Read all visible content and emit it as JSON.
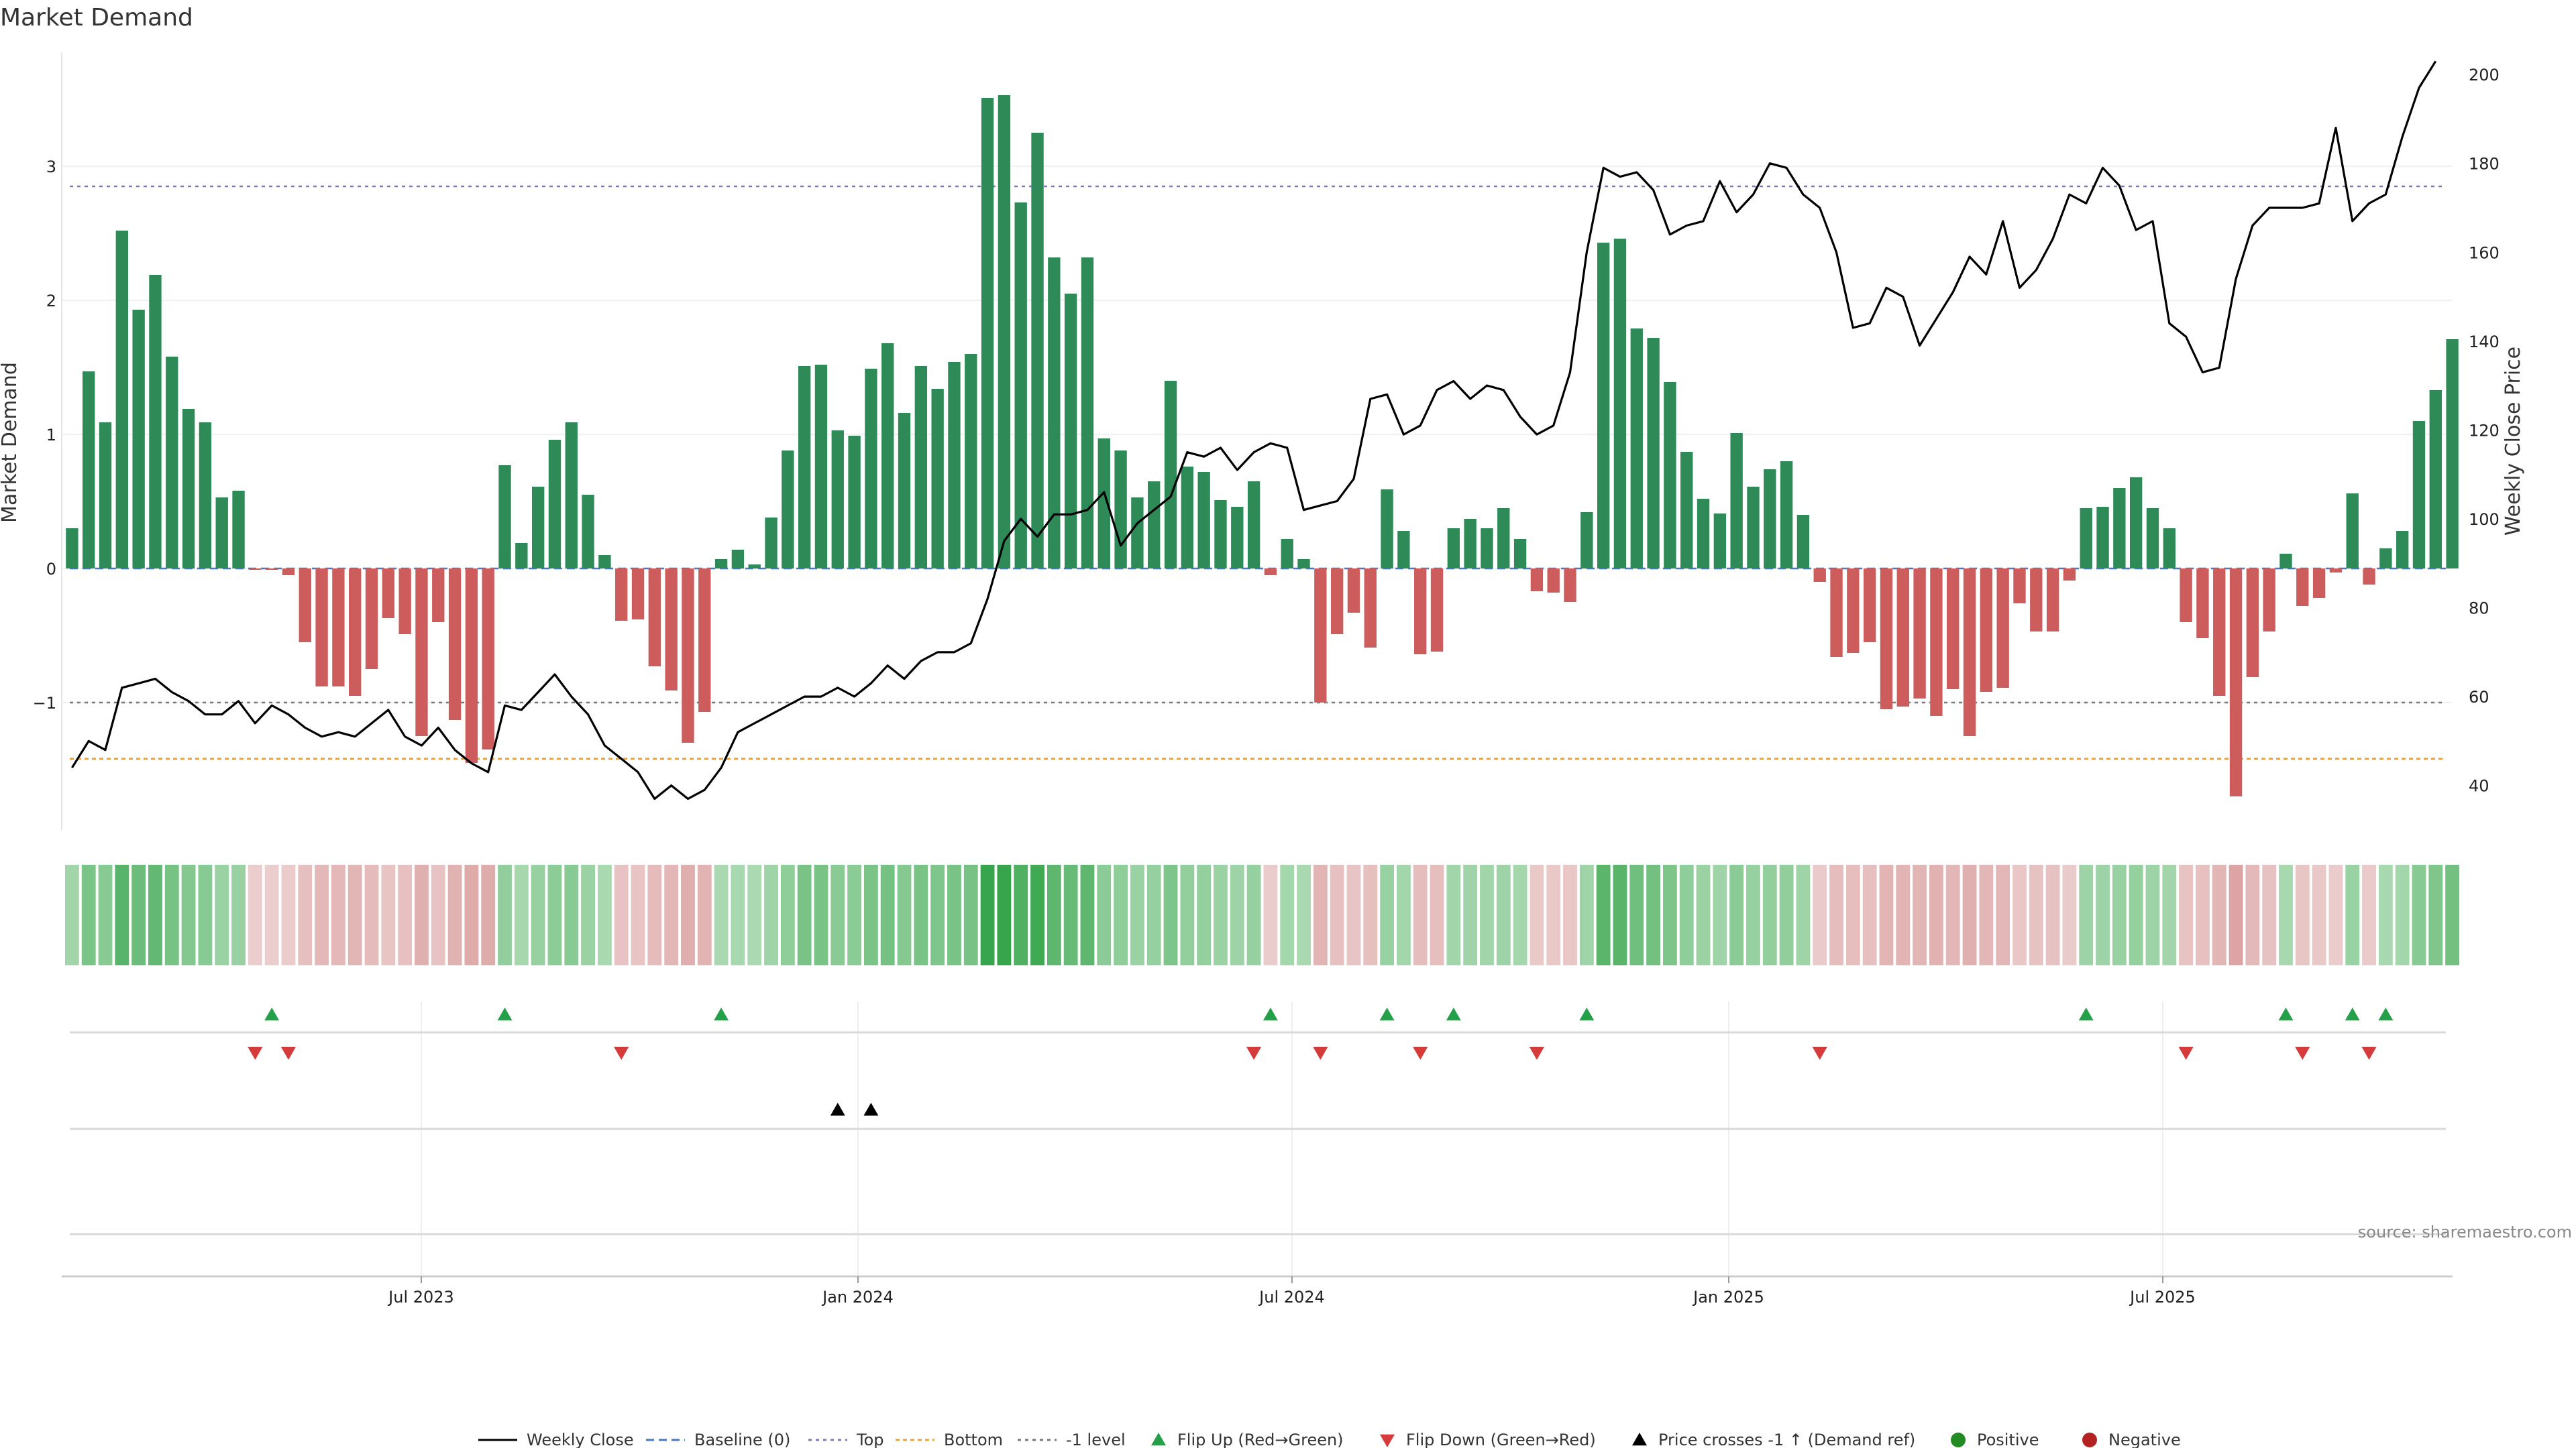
{
  "chart_data": {
    "type": "bar",
    "title": "Market Demand",
    "ylabel_left": "Market Demand",
    "ylabel_right": "Weekly Close Price",
    "x_tick_labels": [
      "Jul 2023",
      "Jan 2024",
      "Jul 2024",
      "Jan 2025",
      "Jul 2025"
    ],
    "y_left_ticks": [
      -1,
      0,
      1,
      2,
      3
    ],
    "y_left_lim": [
      -1.95,
      3.85
    ],
    "y_right_ticks": [
      40,
      60,
      80,
      100,
      120,
      140,
      160,
      180,
      200
    ],
    "y_right_lim": [
      30,
      205
    ],
    "levels": {
      "top": 2.85,
      "bottom": -1.42,
      "minus_one": -1,
      "baseline": 0
    },
    "series": [
      {
        "name": "Market Demand",
        "kind": "bar",
        "values": [
          0.3,
          1.47,
          1.09,
          2.52,
          1.93,
          2.19,
          1.58,
          1.19,
          1.09,
          0.53,
          0.58,
          -0.01,
          -0.01,
          -0.05,
          -0.55,
          -0.88,
          -0.88,
          -0.95,
          -0.75,
          -0.37,
          -0.49,
          -1.25,
          -0.4,
          -1.13,
          -1.45,
          -1.35,
          0.77,
          0.19,
          0.61,
          0.96,
          1.09,
          0.55,
          0.1,
          -0.39,
          -0.38,
          -0.73,
          -0.91,
          -1.3,
          -1.07,
          0.07,
          0.14,
          0.03,
          0.38,
          0.88,
          1.51,
          1.52,
          1.03,
          0.99,
          1.49,
          1.68,
          1.16,
          1.51,
          1.34,
          1.54,
          1.6,
          3.51,
          3.53,
          2.73,
          3.25,
          2.32,
          2.05,
          2.32,
          0.97,
          0.88,
          0.53,
          0.65,
          1.4,
          0.76,
          0.72,
          0.51,
          0.46,
          0.65,
          -0.05,
          0.22,
          0.07,
          -1.0,
          -0.49,
          -0.33,
          -0.59,
          0.59,
          0.28,
          -0.64,
          -0.62,
          0.3,
          0.37,
          0.3,
          0.45,
          0.22,
          -0.17,
          -0.18,
          -0.25,
          0.42,
          2.43,
          2.46,
          1.79,
          1.72,
          1.39,
          0.87,
          0.52,
          0.41,
          1.01,
          0.61,
          0.74,
          0.8,
          0.4,
          -0.1,
          -0.66,
          -0.63,
          -0.55,
          -1.05,
          -1.03,
          -0.97,
          -1.1,
          -0.9,
          -1.25,
          -0.92,
          -0.89,
          -0.26,
          -0.47,
          -0.47,
          -0.09,
          0.45,
          0.46,
          0.6,
          0.68,
          0.45,
          0.3,
          -0.4,
          -0.52,
          -0.95,
          -1.7,
          -0.81,
          -0.47,
          0.11,
          -0.28,
          -0.22,
          -0.03,
          0.56,
          -0.12,
          0.15,
          0.28,
          1.1,
          1.33,
          1.71
        ]
      },
      {
        "name": "Weekly Close",
        "kind": "line",
        "values": [
          44,
          50,
          48,
          62,
          63,
          64,
          61,
          59,
          56,
          56,
          59,
          54,
          58,
          56,
          53,
          51,
          52,
          51,
          54,
          57,
          51,
          49,
          53,
          48,
          45,
          43,
          58,
          57,
          61,
          65,
          60,
          56,
          49,
          46,
          43,
          37,
          40,
          37,
          39,
          44,
          52,
          54,
          56,
          58,
          60,
          60,
          62,
          60,
          63,
          67,
          64,
          68,
          70,
          70,
          72,
          82,
          95,
          100,
          96,
          101,
          101,
          102,
          106,
          94,
          99,
          102,
          105,
          115,
          114,
          116,
          111,
          115,
          117,
          116,
          102,
          103,
          104,
          109,
          127,
          128,
          119,
          121,
          129,
          131,
          127,
          130,
          129,
          123,
          119,
          121,
          133,
          160,
          179,
          177,
          178,
          174,
          164,
          166,
          167,
          176,
          169,
          173,
          180,
          179,
          173,
          170,
          160,
          143,
          144,
          152,
          150,
          139,
          145,
          151,
          159,
          155,
          167,
          152,
          156,
          163,
          173,
          171,
          179,
          175,
          165,
          167,
          144,
          141,
          133,
          134,
          154,
          166,
          170,
          170,
          170,
          171,
          188,
          167,
          171,
          173,
          186,
          197,
          203
        ]
      }
    ],
    "flip_up_weeks": [
      12,
      26,
      39,
      72,
      79,
      83,
      91,
      121,
      133,
      137,
      139
    ],
    "flip_down_weeks": [
      11,
      13,
      33,
      71,
      75,
      81,
      88,
      105,
      127,
      134,
      138
    ],
    "price_cross_weeks": [
      46,
      48
    ],
    "legend": [
      "Weekly Close",
      "Baseline (0)",
      "Top",
      "Bottom",
      "-1 level",
      "Flip Up (Red→Green)",
      "Flip Down (Green→Red)",
      "Price crosses -1 ↑ (Demand ref)",
      "Positive",
      "Negative"
    ],
    "legend_placement": "bottom",
    "source": "source: sharemaestro.com",
    "colors": {
      "positive_bar": "#2e8b57",
      "negative_bar": "#cd5c5c",
      "price_line": "#000000",
      "baseline": "#4a76c8",
      "top": "#7b7bb8",
      "bottom": "#e8a33d",
      "minus_one": "#777777",
      "flip_up": "#23a048",
      "flip_down": "#d63b3b",
      "cross": "#000000",
      "positive_dot": "#228b22",
      "negative_dot": "#b22222"
    }
  }
}
